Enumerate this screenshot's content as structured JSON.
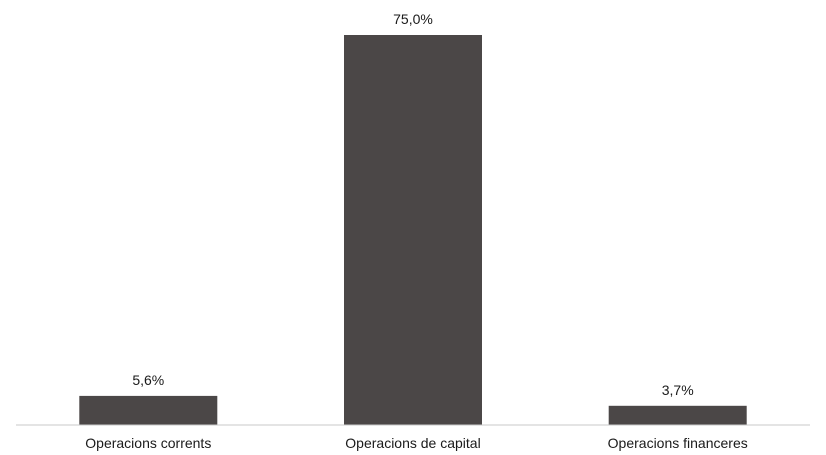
{
  "chart_data": {
    "type": "bar",
    "categories": [
      "Operacions corrents",
      "Operacions de capital",
      "Operacions financeres"
    ],
    "values": [
      5.6,
      75.0,
      3.7
    ],
    "data_labels": [
      "5,6%",
      "75,0%",
      "3,7%"
    ],
    "title": "",
    "xlabel": "",
    "ylabel": "",
    "ylim": [
      0,
      75
    ],
    "grid": false,
    "legend": "none",
    "bar_color": "#4b4747"
  }
}
